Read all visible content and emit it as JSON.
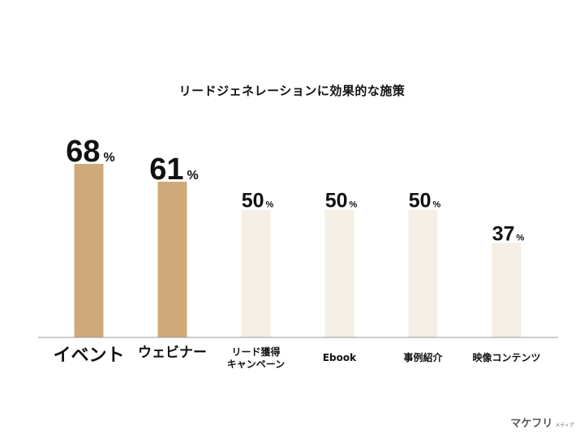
{
  "chart_data": {
    "type": "bar",
    "title": "リードジェネレーションに効果的な施策",
    "categories": [
      "イベント",
      "ウェビナー",
      "リード獲得\nキャンペーン",
      "Ebook",
      "事例紹介",
      "映像コンテンツ"
    ],
    "values": [
      68,
      61,
      50,
      50,
      50,
      37
    ],
    "value_suffix": "%",
    "highlight": [
      true,
      true,
      false,
      false,
      false,
      false
    ],
    "ylim": [
      0,
      68
    ],
    "grid": false,
    "legend": "none",
    "colors": {
      "highlight": "#cfa979",
      "normal": "#f4eee4",
      "axis": "#999999",
      "text": "#111111"
    }
  },
  "logo": {
    "main": "マケフリ",
    "sub": "メディア"
  }
}
